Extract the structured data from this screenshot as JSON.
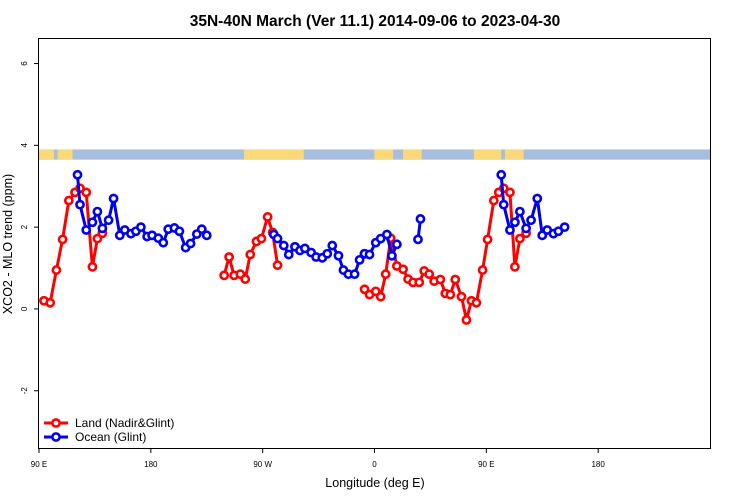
{
  "chart_data": {
    "type": "line",
    "title": "35N-40N March (Ver 11.1)   2014-09-06 to 2023-04-30",
    "xlabel": "Longitude (deg E)",
    "ylabel": "XCO2 - MLO trend (ppm)",
    "xlim": [
      90,
      630
    ],
    "ylim": [
      -3.4,
      6.6
    ],
    "x_ticks": [
      {
        "value": 90,
        "label": "90 E"
      },
      {
        "value": 180,
        "label": "180"
      },
      {
        "value": 270,
        "label": "90 W"
      },
      {
        "value": 360,
        "label": "0"
      },
      {
        "value": 450,
        "label": "90 E"
      },
      {
        "value": 540,
        "label": "180"
      }
    ],
    "y_ticks": [
      {
        "value": -2,
        "label": "-2"
      },
      {
        "value": 0,
        "label": "0"
      },
      {
        "value": 2,
        "label": "2"
      },
      {
        "value": 4,
        "label": "4"
      },
      {
        "value": 6,
        "label": "6"
      }
    ],
    "land_ocean_strip": {
      "y_range": [
        3.65,
        3.9
      ],
      "land_color": "#fbd979",
      "ocean_color": "#a7bedf",
      "land_spans": [
        [
          90,
          102
        ],
        [
          105,
          117
        ],
        [
          255,
          303
        ],
        [
          360,
          375
        ],
        [
          383,
          398
        ],
        [
          440,
          462
        ],
        [
          465,
          480
        ]
      ]
    },
    "legend_position": "bottom-left",
    "series": [
      {
        "name": "Land (Nadir&Glint)",
        "color": "#ff0000",
        "segments": [
          [
            [
              94,
              0.2
            ],
            [
              99,
              0.15
            ],
            [
              104,
              0.95
            ],
            [
              109,
              1.7
            ],
            [
              114,
              2.65
            ],
            [
              119,
              2.85
            ],
            [
              123,
              2.95
            ],
            [
              128,
              2.85
            ],
            [
              133,
              1.03
            ],
            [
              137,
              1.72
            ],
            [
              141,
              1.85
            ]
          ],
          [
            [
              239,
              0.82
            ],
            [
              243,
              1.27
            ],
            [
              247,
              0.82
            ],
            [
              252,
              0.85
            ],
            [
              256,
              0.73
            ],
            [
              260,
              1.33
            ],
            [
              265,
              1.65
            ],
            [
              269,
              1.72
            ],
            [
              274,
              2.25
            ],
            [
              278,
              1.87
            ],
            [
              282,
              1.07
            ]
          ],
          [
            [
              352,
              0.48
            ],
            [
              356,
              0.35
            ],
            [
              361,
              0.43
            ],
            [
              365,
              0.3
            ],
            [
              369,
              0.85
            ],
            [
              373,
              1.73
            ],
            [
              378,
              1.05
            ],
            [
              383,
              0.97
            ],
            [
              387,
              0.73
            ],
            [
              391,
              0.65
            ],
            [
              396,
              0.65
            ],
            [
              400,
              0.93
            ],
            [
              404,
              0.85
            ],
            [
              408,
              0.68
            ],
            [
              413,
              0.72
            ],
            [
              417,
              0.38
            ],
            [
              421,
              0.35
            ],
            [
              425,
              0.72
            ],
            [
              430,
              0.3
            ],
            [
              434,
              -0.27
            ],
            [
              438,
              0.2
            ],
            [
              442,
              0.15
            ],
            [
              447,
              0.95
            ],
            [
              451,
              1.7
            ],
            [
              456,
              2.65
            ],
            [
              460,
              2.85
            ],
            [
              464,
              2.95
            ],
            [
              469,
              2.85
            ],
            [
              473,
              1.03
            ],
            [
              477,
              1.72
            ],
            [
              482,
              1.85
            ]
          ]
        ]
      },
      {
        "name": "Ocean (Glint)",
        "color": "#0000ee",
        "segments": [
          [
            [
              121,
              3.28
            ],
            [
              123,
              2.55
            ],
            [
              128,
              1.93
            ],
            [
              133,
              2.12
            ],
            [
              137,
              2.38
            ],
            [
              141,
              1.97
            ],
            [
              146,
              2.17
            ],
            [
              150,
              2.7
            ],
            [
              155,
              1.8
            ],
            [
              159,
              1.93
            ],
            [
              164,
              1.84
            ],
            [
              168,
              1.9
            ],
            [
              172,
              2.0
            ],
            [
              177,
              1.77
            ],
            [
              181,
              1.8
            ],
            [
              186,
              1.73
            ],
            [
              190,
              1.62
            ],
            [
              194,
              1.95
            ],
            [
              199,
              1.98
            ],
            [
              203,
              1.9
            ],
            [
              208,
              1.5
            ],
            [
              212,
              1.6
            ],
            [
              217,
              1.83
            ],
            [
              221,
              1.95
            ],
            [
              225,
              1.8
            ]
          ],
          [
            [
              279,
              1.82
            ],
            [
              282,
              1.72
            ],
            [
              287,
              1.55
            ],
            [
              291,
              1.33
            ],
            [
              296,
              1.52
            ],
            [
              300,
              1.43
            ],
            [
              304,
              1.48
            ],
            [
              309,
              1.38
            ],
            [
              313,
              1.27
            ],
            [
              318,
              1.25
            ],
            [
              322,
              1.35
            ],
            [
              326,
              1.55
            ],
            [
              331,
              1.3
            ],
            [
              335,
              0.95
            ],
            [
              339,
              0.85
            ],
            [
              344,
              0.85
            ],
            [
              348,
              1.2
            ],
            [
              352,
              1.35
            ]
          ],
          [
            [
              352,
              1.35
            ],
            [
              356,
              1.33
            ],
            [
              361,
              1.62
            ],
            [
              365,
              1.72
            ],
            [
              370,
              1.82
            ],
            [
              374,
              1.3
            ],
            [
              378,
              1.58
            ]
          ],
          [
            [
              395,
              1.7
            ],
            [
              397,
              2.2
            ]
          ],
          [
            [
              462,
              3.28
            ],
            [
              464,
              2.55
            ],
            [
              469,
              1.93
            ],
            [
              473,
              2.12
            ],
            [
              477,
              2.38
            ],
            [
              482,
              1.97
            ],
            [
              486,
              2.17
            ],
            [
              491,
              2.7
            ],
            [
              495,
              1.8
            ],
            [
              499,
              1.93
            ],
            [
              504,
              1.84
            ],
            [
              508,
              1.9
            ],
            [
              513,
              2.0
            ]
          ]
        ]
      }
    ]
  }
}
